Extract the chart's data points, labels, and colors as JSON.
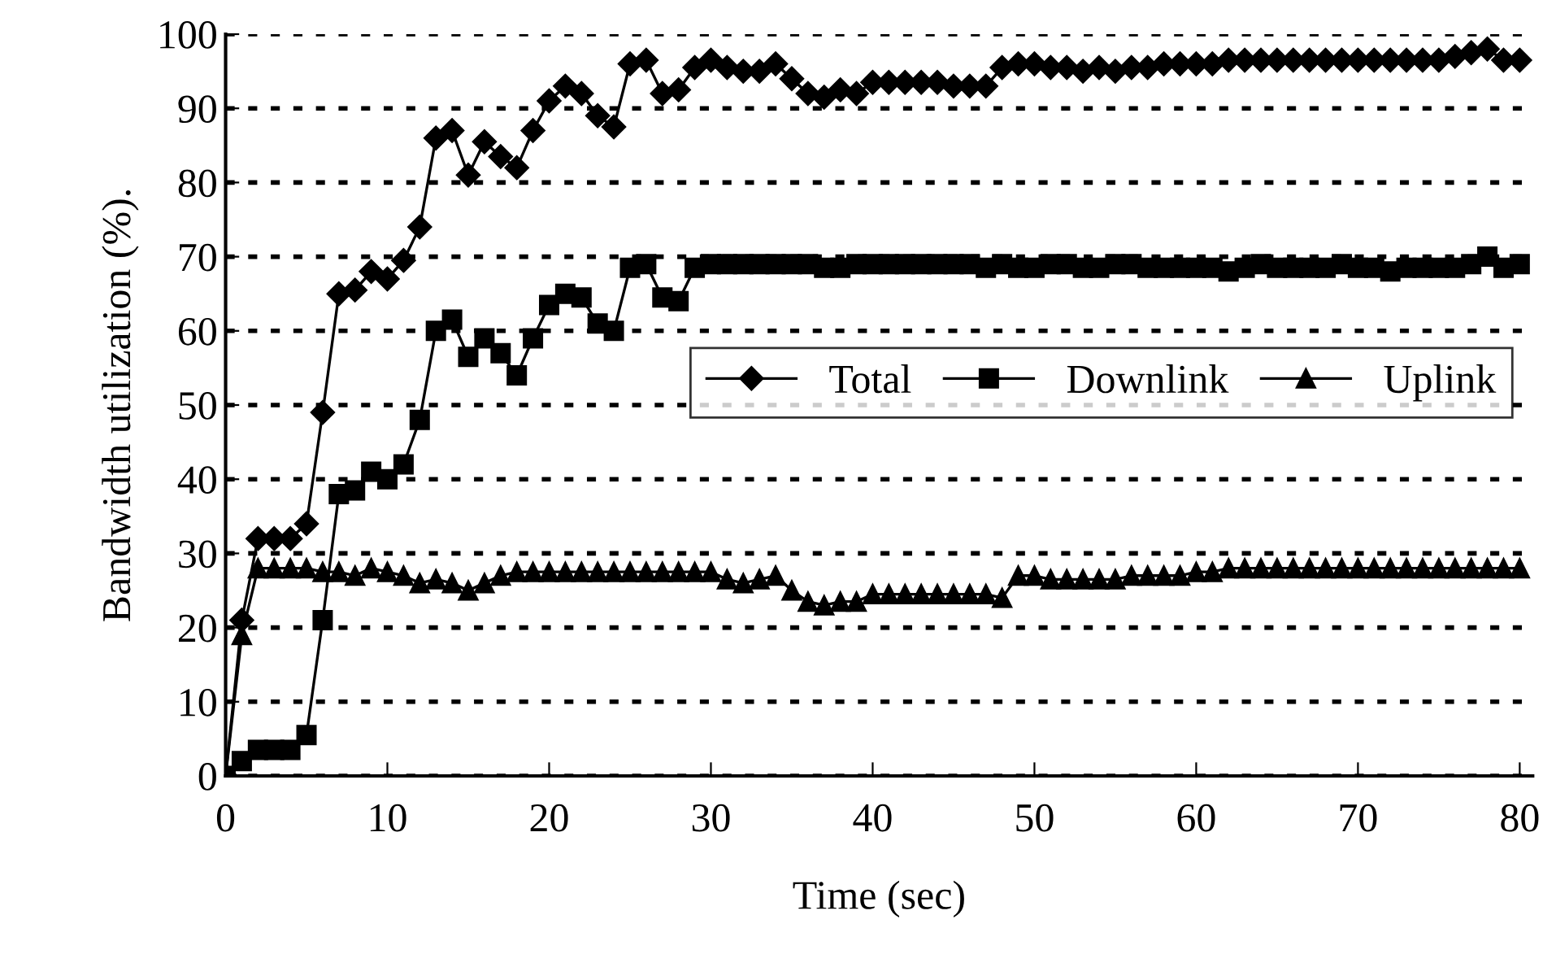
{
  "chart_data": {
    "type": "line",
    "xlabel": "Time (sec)",
    "ylabel": "Bandwidth utilization (%).",
    "x": [
      0,
      1,
      2,
      3,
      4,
      5,
      6,
      7,
      8,
      9,
      10,
      11,
      12,
      13,
      14,
      15,
      16,
      17,
      18,
      19,
      20,
      21,
      22,
      23,
      24,
      25,
      26,
      27,
      28,
      29,
      30,
      31,
      32,
      33,
      34,
      35,
      36,
      37,
      38,
      39,
      40,
      41,
      42,
      43,
      44,
      45,
      46,
      47,
      48,
      49,
      50,
      51,
      52,
      53,
      54,
      55,
      56,
      57,
      58,
      59,
      60,
      61,
      62,
      63,
      64,
      65,
      66,
      67,
      68,
      69,
      70,
      71,
      72,
      73,
      74,
      75,
      76,
      77,
      78,
      79,
      80
    ],
    "series": [
      {
        "name": "Total",
        "color": "#000000",
        "marker": "diamond",
        "values": [
          0,
          21,
          32,
          32,
          32,
          34,
          49,
          65,
          65.5,
          68,
          67,
          69.5,
          74,
          86,
          87,
          81,
          85.5,
          83.5,
          82,
          87,
          91,
          93,
          92,
          89,
          87.5,
          96,
          96.5,
          92,
          92.5,
          95.5,
          96.5,
          95.5,
          95,
          95,
          96,
          94,
          92,
          91.5,
          92.5,
          92,
          93.5,
          93.5,
          93.5,
          93.5,
          93.5,
          93,
          93,
          93,
          95.5,
          96,
          96,
          95.5,
          95.5,
          95,
          95.5,
          95,
          95.5,
          95.5,
          96,
          96,
          96,
          96,
          96.5,
          96.5,
          96.5,
          96.5,
          96.5,
          96.5,
          96.5,
          96.5,
          96.5,
          96.5,
          96.5,
          96.5,
          96.5,
          96.5,
          97,
          97.5,
          98,
          96.5,
          96.5
        ]
      },
      {
        "name": "Downlink",
        "color": "#000000",
        "marker": "square",
        "values": [
          0,
          2,
          3.5,
          3.5,
          3.5,
          5.5,
          21,
          38,
          38.5,
          41,
          40,
          42,
          48,
          60,
          61.5,
          56.5,
          59,
          57,
          54,
          59,
          63.5,
          65,
          64.5,
          61,
          60,
          68.5,
          69,
          64.5,
          64,
          68.5,
          69,
          69,
          69,
          69,
          69,
          69,
          69,
          68.5,
          68.5,
          69,
          69,
          69,
          69,
          69,
          69,
          69,
          69,
          68.5,
          69,
          68.5,
          68.5,
          69,
          69,
          68.5,
          68.5,
          69,
          69,
          68.5,
          68.5,
          68.5,
          68.5,
          68.5,
          68,
          68.5,
          69,
          68.5,
          68.5,
          68.5,
          68.5,
          69,
          68.5,
          68.5,
          68,
          68.5,
          68.5,
          68.5,
          68.5,
          69,
          70,
          68.5,
          69
        ]
      },
      {
        "name": "Uplink",
        "color": "#000000",
        "marker": "triangle",
        "values": [
          0,
          19,
          28,
          28,
          28,
          28,
          27.5,
          27.5,
          27,
          28,
          27.5,
          27,
          26,
          26.5,
          26,
          25,
          26,
          27,
          27.5,
          27.5,
          27.5,
          27.5,
          27.5,
          27.5,
          27.5,
          27.5,
          27.5,
          27.5,
          27.5,
          27.5,
          27.5,
          26.5,
          26,
          26.5,
          27,
          25,
          23.5,
          23,
          23.5,
          23.5,
          24.5,
          24.5,
          24.5,
          24.5,
          24.5,
          24.5,
          24.5,
          24.5,
          24,
          27,
          27,
          26.5,
          26.5,
          26.5,
          26.5,
          26.5,
          27,
          27,
          27,
          27,
          27.5,
          27.5,
          28,
          28,
          28,
          28,
          28,
          28,
          28,
          28,
          28,
          28,
          28,
          28,
          28,
          28,
          28,
          28,
          28,
          28,
          28
        ]
      }
    ],
    "xlim": [
      0,
      80.8
    ],
    "xticks": [
      0,
      10,
      20,
      30,
      40,
      50,
      60,
      70,
      80
    ],
    "ylim": [
      0,
      100
    ],
    "yticks": [
      0,
      10,
      20,
      30,
      40,
      50,
      60,
      70,
      80,
      90,
      100
    ],
    "grid": "y",
    "legend": "center right",
    "line_style": "solid"
  }
}
